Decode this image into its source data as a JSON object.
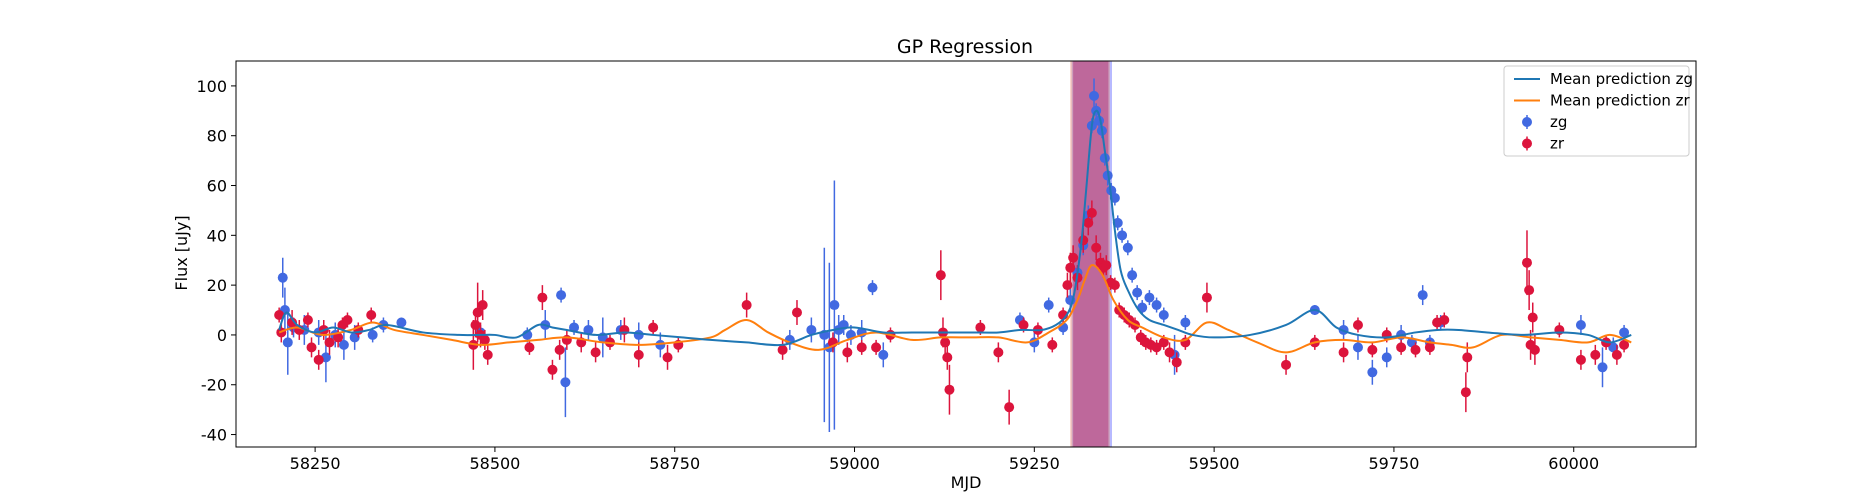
{
  "chart_data": {
    "type": "scatter",
    "title": "GP Regression",
    "xlabel": "MJD",
    "ylabel": "Flux [uJy]",
    "xlim": [
      58140,
      60170
    ],
    "ylim": [
      -45,
      110
    ],
    "xticks": [
      58250,
      58500,
      58750,
      59000,
      59250,
      59500,
      59750,
      60000
    ],
    "yticks": [
      -40,
      -20,
      0,
      20,
      40,
      60,
      80,
      100
    ],
    "grid": false,
    "legend_position": "top-right",
    "legend": [
      {
        "label": "Mean prediction zg",
        "kind": "line",
        "color": "#1f77b4"
      },
      {
        "label": "Mean prediction zr",
        "kind": "line",
        "color": "#ff7f0e"
      },
      {
        "label": "zg",
        "kind": "errorbar",
        "color": "#4169e1"
      },
      {
        "label": "zr",
        "kind": "errorbar",
        "color": "#dc143c"
      }
    ],
    "shaded_regions": [
      {
        "x0": 59302,
        "x1": 59358,
        "color": "#6f74ff",
        "opacity": 0.5
      },
      {
        "x0": 59300,
        "x1": 59355,
        "color": "#e8836a",
        "opacity": 0.45
      },
      {
        "x0": 59304,
        "x1": 59353,
        "color": "#b0307a",
        "opacity": 0.5
      }
    ],
    "series": [
      {
        "name": "Mean prediction zg",
        "kind": "line",
        "color": "#1f77b4",
        "x": [
          58200,
          58210,
          58225,
          58250,
          58275,
          58300,
          58325,
          58350,
          58400,
          58450,
          58480,
          58500,
          58530,
          58560,
          58580,
          58600,
          58640,
          58680,
          58720,
          58760,
          58800,
          58850,
          58900,
          58940,
          58970,
          59000,
          59040,
          59080,
          59120,
          59160,
          59200,
          59230,
          59260,
          59280,
          59295,
          59305,
          59315,
          59322,
          59330,
          59336,
          59342,
          59348,
          59355,
          59362,
          59370,
          59380,
          59395,
          59410,
          59430,
          59450,
          59470,
          59500,
          59550,
          59600,
          59640,
          59670,
          59700,
          59740,
          59780,
          59810,
          59840,
          59880,
          59930,
          59980,
          60020,
          60050,
          60080
        ],
        "y": [
          2,
          9,
          4,
          1,
          3,
          1,
          2,
          4,
          1,
          0,
          0,
          0,
          -1,
          4,
          3,
          2,
          0,
          1,
          0,
          -1,
          -2,
          -3,
          -4,
          0,
          2,
          3,
          1,
          1,
          1,
          1,
          1,
          2,
          2,
          4,
          8,
          16,
          36,
          58,
          84,
          90,
          86,
          74,
          60,
          42,
          26,
          18,
          10,
          6,
          4,
          2,
          0,
          -1,
          0,
          4,
          10,
          3,
          0,
          -1,
          1,
          2,
          2,
          1,
          0,
          1,
          0,
          -3,
          0
        ]
      },
      {
        "name": "Mean prediction zr",
        "kind": "line",
        "color": "#ff7f0e",
        "x": [
          58200,
          58225,
          58260,
          58300,
          58330,
          58360,
          58400,
          58440,
          58480,
          58520,
          58560,
          58600,
          58650,
          58700,
          58750,
          58800,
          58820,
          58850,
          58880,
          58910,
          58950,
          58990,
          59030,
          59080,
          59120,
          59160,
          59200,
          59240,
          59270,
          59295,
          59310,
          59320,
          59330,
          59345,
          59360,
          59380,
          59400,
          59430,
          59460,
          59490,
          59520,
          59560,
          59600,
          59640,
          59680,
          59720,
          59760,
          59800,
          59830,
          59860,
          59900,
          59940,
          59980,
          60020,
          60050,
          60080
        ],
        "y": [
          1,
          3,
          0,
          2,
          5,
          2,
          0,
          -2,
          -4,
          -3,
          -2,
          -1,
          -3,
          -4,
          -3,
          -1,
          2,
          6,
          1,
          -3,
          -6,
          -2,
          1,
          -2,
          -1,
          -1,
          -1,
          -3,
          1,
          6,
          14,
          22,
          28,
          24,
          14,
          6,
          3,
          -1,
          -2,
          5,
          2,
          -3,
          -7,
          -3,
          -2,
          -3,
          -1,
          -3,
          -4,
          -5,
          0,
          -1,
          -2,
          -3,
          0,
          -3
        ]
      },
      {
        "name": "zg",
        "kind": "errorbar",
        "color": "#4169e1",
        "points": [
          [
            58205,
            23,
            8
          ],
          [
            58208,
            10,
            9
          ],
          [
            58212,
            -3,
            13
          ],
          [
            58220,
            3,
            4
          ],
          [
            58235,
            2,
            6
          ],
          [
            58255,
            1,
            5
          ],
          [
            58265,
            -9,
            10
          ],
          [
            58278,
            0,
            5
          ],
          [
            58290,
            -4,
            6
          ],
          [
            58305,
            -1,
            5
          ],
          [
            58330,
            0,
            3
          ],
          [
            58345,
            4,
            3
          ],
          [
            58370,
            5,
            2
          ],
          [
            58480,
            1,
            3
          ],
          [
            58545,
            0,
            3
          ],
          [
            58570,
            4,
            6
          ],
          [
            58592,
            16,
            3
          ],
          [
            58598,
            -19,
            14
          ],
          [
            58610,
            3,
            3
          ],
          [
            58630,
            2,
            4
          ],
          [
            58650,
            -1,
            8
          ],
          [
            58675,
            2,
            4
          ],
          [
            58700,
            0,
            5
          ],
          [
            58730,
            -4,
            5
          ],
          [
            58910,
            -2,
            4
          ],
          [
            58940,
            2,
            5
          ],
          [
            58958,
            0,
            35
          ],
          [
            58965,
            -5,
            34
          ],
          [
            58972,
            12,
            50
          ],
          [
            58978,
            2,
            6
          ],
          [
            58985,
            4,
            4
          ],
          [
            58995,
            0,
            4
          ],
          [
            59010,
            1,
            5
          ],
          [
            59025,
            19,
            3
          ],
          [
            59040,
            -8,
            5
          ],
          [
            59230,
            6,
            3
          ],
          [
            59250,
            -3,
            4
          ],
          [
            59270,
            12,
            3
          ],
          [
            59290,
            3,
            3
          ],
          [
            59300,
            14,
            5
          ],
          [
            59310,
            25,
            3
          ],
          [
            59318,
            36,
            4
          ],
          [
            59325,
            48,
            4
          ],
          [
            59330,
            84,
            3
          ],
          [
            59333,
            96,
            7
          ],
          [
            59336,
            90,
            3
          ],
          [
            59340,
            86,
            4
          ],
          [
            59344,
            82,
            3
          ],
          [
            59348,
            71,
            3
          ],
          [
            59352,
            64,
            4
          ],
          [
            59357,
            58,
            3
          ],
          [
            59362,
            55,
            3
          ],
          [
            59366,
            45,
            3
          ],
          [
            59372,
            40,
            3
          ],
          [
            59380,
            35,
            3
          ],
          [
            59386,
            24,
            3
          ],
          [
            59393,
            17,
            3
          ],
          [
            59400,
            11,
            3
          ],
          [
            59410,
            15,
            3
          ],
          [
            59420,
            12,
            3
          ],
          [
            59430,
            8,
            3
          ],
          [
            59445,
            -8,
            8
          ],
          [
            59460,
            5,
            3
          ],
          [
            59640,
            10,
            2
          ],
          [
            59680,
            2,
            4
          ],
          [
            59700,
            -5,
            5
          ],
          [
            59720,
            -15,
            5
          ],
          [
            59740,
            -9,
            4
          ],
          [
            59760,
            0,
            4
          ],
          [
            59775,
            -3,
            3
          ],
          [
            59790,
            16,
            4
          ],
          [
            59800,
            -3,
            3
          ],
          [
            59815,
            5,
            3
          ],
          [
            60010,
            4,
            4
          ],
          [
            60040,
            -13,
            8
          ],
          [
            60055,
            -5,
            4
          ],
          [
            60070,
            1,
            3
          ]
        ]
      },
      {
        "name": "zr",
        "kind": "errorbar",
        "color": "#dc143c",
        "points": [
          [
            58200,
            8,
            3
          ],
          [
            58203,
            1,
            4
          ],
          [
            58218,
            5,
            5
          ],
          [
            58228,
            2,
            4
          ],
          [
            58240,
            6,
            3
          ],
          [
            58245,
            -5,
            4
          ],
          [
            58255,
            -10,
            4
          ],
          [
            58262,
            2,
            4
          ],
          [
            58270,
            -3,
            5
          ],
          [
            58282,
            -1,
            4
          ],
          [
            58288,
            4,
            3
          ],
          [
            58295,
            6,
            3
          ],
          [
            58310,
            2,
            3
          ],
          [
            58328,
            8,
            3
          ],
          [
            58470,
            -4,
            10
          ],
          [
            58473,
            4,
            5
          ],
          [
            58476,
            9,
            12
          ],
          [
            58480,
            0,
            5
          ],
          [
            58483,
            12,
            6
          ],
          [
            58486,
            -2,
            4
          ],
          [
            58490,
            -8,
            4
          ],
          [
            58548,
            -5,
            3
          ],
          [
            58566,
            15,
            5
          ],
          [
            58580,
            -14,
            4
          ],
          [
            58590,
            -6,
            4
          ],
          [
            58600,
            -2,
            4
          ],
          [
            58620,
            -3,
            4
          ],
          [
            58640,
            -7,
            4
          ],
          [
            58660,
            -3,
            3
          ],
          [
            58680,
            2,
            5
          ],
          [
            58700,
            -8,
            5
          ],
          [
            58720,
            3,
            3
          ],
          [
            58740,
            -9,
            5
          ],
          [
            58755,
            -4,
            3
          ],
          [
            58850,
            12,
            5
          ],
          [
            58900,
            -6,
            4
          ],
          [
            58920,
            9,
            5
          ],
          [
            58970,
            -3,
            4
          ],
          [
            58990,
            -7,
            4
          ],
          [
            59010,
            -5,
            3
          ],
          [
            59030,
            -5,
            3
          ],
          [
            59050,
            0,
            3
          ],
          [
            59120,
            24,
            10
          ],
          [
            59123,
            1,
            6
          ],
          [
            59126,
            -3,
            5
          ],
          [
            59129,
            -9,
            5
          ],
          [
            59132,
            -22,
            10
          ],
          [
            59175,
            3,
            3
          ],
          [
            59200,
            -7,
            4
          ],
          [
            59215,
            -29,
            7
          ],
          [
            59235,
            4,
            3
          ],
          [
            59255,
            2,
            3
          ],
          [
            59275,
            -4,
            3
          ],
          [
            59290,
            8,
            3
          ],
          [
            59296,
            20,
            5
          ],
          [
            59300,
            27,
            6
          ],
          [
            59304,
            31,
            5
          ],
          [
            59310,
            23,
            5
          ],
          [
            59318,
            38,
            5
          ],
          [
            59325,
            45,
            5
          ],
          [
            59330,
            49,
            5
          ],
          [
            59336,
            35,
            5
          ],
          [
            59342,
            29,
            4
          ],
          [
            59346,
            27,
            4
          ],
          [
            59350,
            28,
            4
          ],
          [
            59356,
            21,
            3
          ],
          [
            59362,
            20,
            3
          ],
          [
            59368,
            10,
            3
          ],
          [
            59375,
            8,
            3
          ],
          [
            59382,
            6,
            3
          ],
          [
            59390,
            4,
            3
          ],
          [
            59398,
            -1,
            3
          ],
          [
            59405,
            -3,
            3
          ],
          [
            59412,
            -4,
            3
          ],
          [
            59420,
            -5,
            3
          ],
          [
            59430,
            -3,
            3
          ],
          [
            59438,
            -7,
            4
          ],
          [
            59448,
            -11,
            4
          ],
          [
            59460,
            -3,
            3
          ],
          [
            59490,
            15,
            6
          ],
          [
            59600,
            -12,
            4
          ],
          [
            59640,
            -3,
            3
          ],
          [
            59680,
            -7,
            4
          ],
          [
            59700,
            4,
            3
          ],
          [
            59720,
            -6,
            3
          ],
          [
            59740,
            0,
            3
          ],
          [
            59760,
            -5,
            3
          ],
          [
            59780,
            -6,
            3
          ],
          [
            59800,
            -5,
            3
          ],
          [
            59810,
            5,
            3
          ],
          [
            59820,
            6,
            3
          ],
          [
            59850,
            -23,
            8
          ],
          [
            59852,
            -9,
            6
          ],
          [
            59935,
            29,
            13
          ],
          [
            59938,
            18,
            8
          ],
          [
            59940,
            -4,
            6
          ],
          [
            59943,
            7,
            6
          ],
          [
            59946,
            -6,
            6
          ],
          [
            59980,
            2,
            3
          ],
          [
            60010,
            -10,
            4
          ],
          [
            60030,
            -8,
            4
          ],
          [
            60045,
            -3,
            3
          ],
          [
            60060,
            -8,
            4
          ],
          [
            60070,
            -4,
            3
          ]
        ]
      }
    ]
  }
}
